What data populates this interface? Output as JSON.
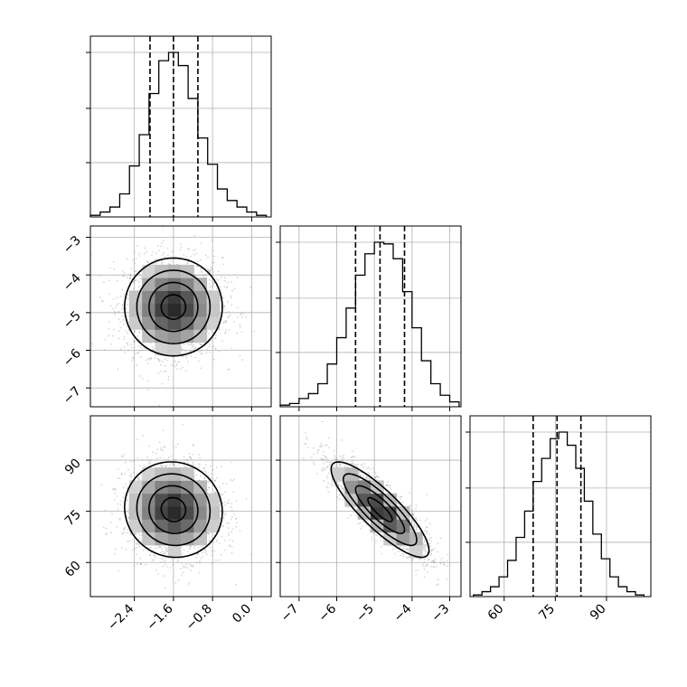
{
  "chart_data": {
    "type": "corner",
    "parameters": [
      {
        "id": "p1",
        "range": [
          -3.3,
          0.4
        ],
        "ticks": [
          -2.4,
          -1.6,
          -0.8,
          0.0
        ],
        "tick_labels": [
          "−2.4",
          "−1.6",
          "−0.8",
          "0.0"
        ],
        "median": -1.6,
        "q16": -2.08,
        "q84": -1.1,
        "mean": -1.6,
        "sd": 0.5
      },
      {
        "id": "p2",
        "range": [
          -7.5,
          -2.7
        ],
        "ticks": [
          -7,
          -6,
          -5,
          -4,
          -3
        ],
        "tick_labels": [
          "−7",
          "−6",
          "−5",
          "−4",
          "−3"
        ],
        "median": -4.85,
        "q16": -5.5,
        "q84": -4.2,
        "mean": -4.85,
        "sd": 0.65
      },
      {
        "id": "p3",
        "range": [
          50,
          103
        ],
        "ticks": [
          60,
          75,
          90
        ],
        "tick_labels": [
          "60",
          "75",
          "90"
        ],
        "median": 75.5,
        "q16": 68.5,
        "q84": 82.5,
        "mean": 75.5,
        "sd": 7.0
      }
    ],
    "histograms": [
      {
        "param": "p1",
        "bin_edges": [
          -3.3,
          -3.1,
          -2.9,
          -2.7,
          -2.5,
          -2.3,
          -2.1,
          -1.9,
          -1.7,
          -1.5,
          -1.3,
          -1.1,
          -0.9,
          -0.7,
          -0.5,
          -0.3,
          -0.1,
          0.1,
          0.3
        ],
        "counts": [
          1,
          3,
          6,
          14,
          31,
          50,
          75,
          95,
          100,
          92,
          72,
          48,
          32,
          17,
          10,
          6,
          3,
          1
        ]
      },
      {
        "param": "p2",
        "bin_edges": [
          -7.5,
          -7.25,
          -7.0,
          -6.75,
          -6.5,
          -6.25,
          -6.0,
          -5.75,
          -5.5,
          -5.25,
          -5.0,
          -4.75,
          -4.5,
          -4.25,
          -4.0,
          -3.75,
          -3.5,
          -3.25,
          -3.0,
          -2.75
        ],
        "counts": [
          1,
          2,
          5,
          8,
          14,
          26,
          42,
          60,
          80,
          93,
          100,
          99,
          90,
          70,
          48,
          28,
          14,
          7,
          3
        ]
      },
      {
        "param": "p3",
        "bin_edges": [
          51,
          53.5,
          56,
          58.5,
          61,
          63.5,
          66,
          68.5,
          71,
          73.5,
          76,
          78.5,
          81,
          83.5,
          86,
          88.5,
          91,
          93.5,
          96,
          98.5,
          101
        ],
        "counts": [
          1,
          3,
          6,
          12,
          22,
          36,
          52,
          70,
          84,
          96,
          100,
          92,
          78,
          58,
          38,
          23,
          12,
          6,
          3,
          1
        ]
      }
    ],
    "pairs": [
      {
        "x": "p1",
        "y": "p2",
        "correlation": 0.0
      },
      {
        "x": "p1",
        "y": "p3",
        "correlation": -0.05
      },
      {
        "x": "p2",
        "y": "p3",
        "correlation": -0.85
      }
    ],
    "contour_levels_sigma": [
      0.5,
      1.0,
      1.5,
      2.0
    ],
    "grid": true,
    "samples_per_panel": 2200
  }
}
